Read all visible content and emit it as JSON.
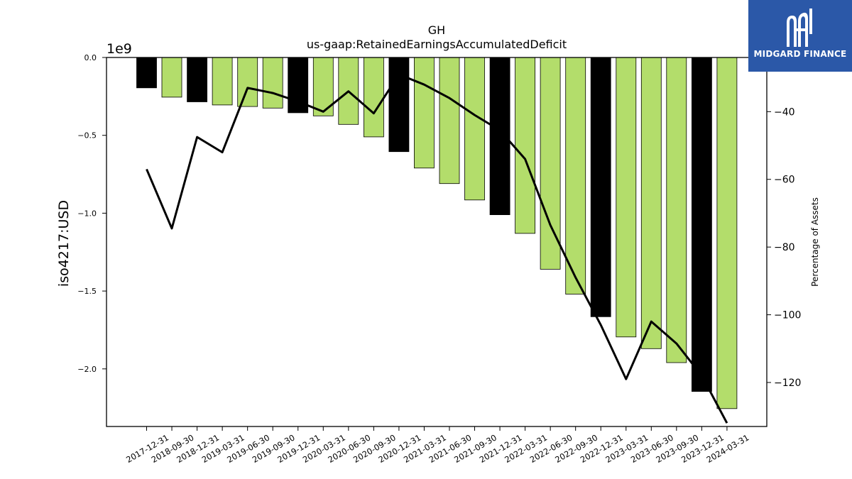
{
  "chart_data": {
    "type": "bar",
    "title": "GH",
    "subtitle": "us-gaap:RetainedEarningsAccumulatedDeficit",
    "ylabel": "iso4217:USD",
    "y2label": "Percentage of Assets",
    "offset_label": "1e9",
    "ylim": [
      -2.37,
      0.0
    ],
    "y2lim": [
      -133,
      -24
    ],
    "yticks": [
      "0.0",
      "−0.5",
      "−1.0",
      "−1.5",
      "−2.0"
    ],
    "y2ticks": [
      "−40",
      "−60",
      "−80",
      "−100",
      "−120"
    ],
    "categories": [
      "2017-12-31",
      "2018-09-30",
      "2018-12-31",
      "2019-03-31",
      "2019-06-30",
      "2019-09-30",
      "2019-12-31",
      "2020-03-31",
      "2020-06-30",
      "2020-09-30",
      "2020-12-31",
      "2021-03-31",
      "2021-06-30",
      "2021-09-30",
      "2021-12-31",
      "2022-03-31",
      "2022-06-30",
      "2022-09-30",
      "2022-12-31",
      "2023-03-31",
      "2023-06-30",
      "2023-09-30",
      "2023-12-31",
      "2024-03-31"
    ],
    "series": [
      {
        "values": [
          -0.195,
          -0.255,
          -0.285,
          -0.305,
          -0.315,
          -0.325,
          -0.355,
          -0.375,
          -0.43,
          -0.51,
          -0.605,
          -0.71,
          -0.81,
          -0.915,
          -1.01,
          -1.13,
          -1.36,
          -1.52,
          -1.665,
          -1.795,
          -1.87,
          -1.96,
          -2.145,
          -2.255
        ],
        "highlight": [
          true,
          false,
          true,
          false,
          false,
          false,
          true,
          false,
          false,
          false,
          true,
          false,
          false,
          false,
          true,
          false,
          false,
          false,
          true,
          false,
          false,
          false,
          true,
          false
        ]
      },
      {
        "values": [
          -57,
          -74.5,
          -47.5,
          -52,
          -33,
          -34.5,
          -37,
          -40,
          -34,
          -40.5,
          -29,
          -32,
          -36,
          -41,
          -45.5,
          -54,
          -73.5,
          -89,
          -103,
          -119,
          -102,
          -108.5,
          -118,
          -132
        ]
      }
    ],
    "colors": {
      "bar": "#b3dd6b",
      "bar_highlight": "#000000",
      "line": "#000000",
      "axis": "#000000"
    },
    "legend": "none",
    "grid": false
  },
  "logo": {
    "text": "MIDGARD FINANCE"
  }
}
